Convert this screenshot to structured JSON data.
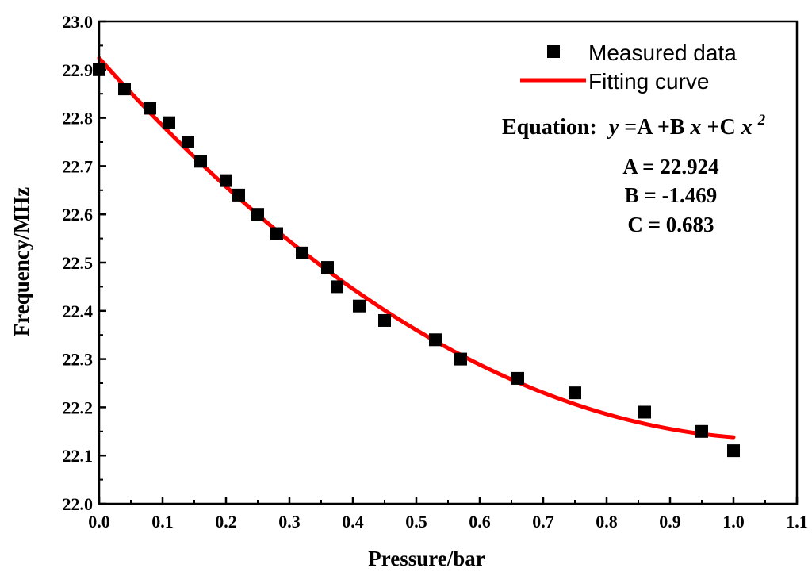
{
  "chart_data": {
    "type": "scatter",
    "title": "",
    "xlabel": "Pressure/bar",
    "ylabel": "Frequency/MHz",
    "xlim": [
      0.0,
      1.1
    ],
    "ylim": [
      22.0,
      23.0
    ],
    "x_ticks": [
      "0.0",
      "0.1",
      "0.2",
      "0.3",
      "0.4",
      "0.5",
      "0.6",
      "0.7",
      "0.8",
      "0.9",
      "1.0",
      "1.1"
    ],
    "y_ticks": [
      "22.0",
      "22.1",
      "22.2",
      "22.3",
      "22.4",
      "22.5",
      "22.6",
      "22.7",
      "22.8",
      "22.9",
      "23.0"
    ],
    "grid": false,
    "legend_position": "top-right",
    "series": [
      {
        "name": "Measured data",
        "kind": "scatter",
        "color": "#000000",
        "x": [
          0.0,
          0.04,
          0.08,
          0.11,
          0.14,
          0.16,
          0.2,
          0.22,
          0.25,
          0.28,
          0.32,
          0.36,
          0.375,
          0.41,
          0.45,
          0.53,
          0.57,
          0.66,
          0.75,
          0.86,
          0.95,
          1.0
        ],
        "y": [
          22.9,
          22.86,
          22.82,
          22.79,
          22.75,
          22.71,
          22.67,
          22.64,
          22.6,
          22.56,
          22.52,
          22.49,
          22.45,
          22.41,
          22.38,
          22.34,
          22.3,
          22.26,
          22.23,
          22.19,
          22.15,
          22.11
        ]
      },
      {
        "name": "Fitting curve",
        "kind": "line",
        "color": "#ff0000",
        "coefficients": {
          "A": 22.924,
          "B": -1.469,
          "C": 0.683
        },
        "x_range": [
          0.0,
          1.0
        ]
      }
    ],
    "annotations": {
      "equation_label": "Equation:",
      "equation_y": "y",
      "equation_part1": "=A +B",
      "equation_x1": "x",
      "equation_part2": "+C",
      "equation_x2": "x",
      "equation_exp": "2",
      "A_text": "A = 22.924",
      "B_text": "B = -1.469",
      "C_text": "C = 0.683"
    }
  }
}
